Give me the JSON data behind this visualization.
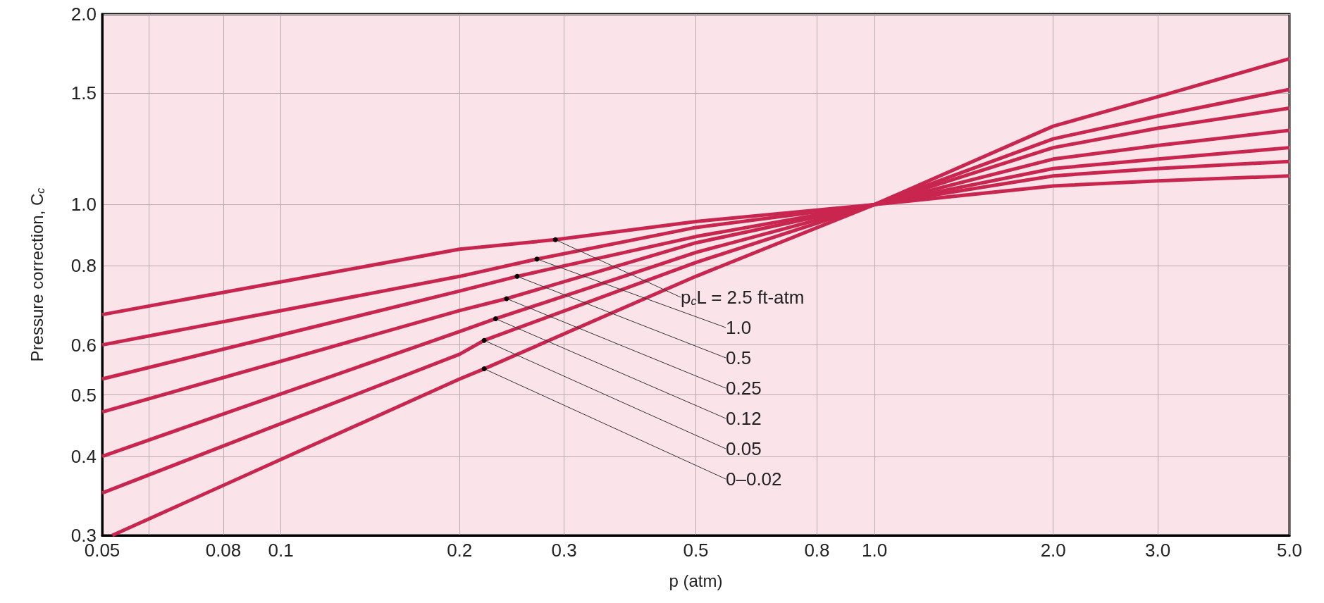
{
  "chart_data": {
    "type": "line",
    "xlabel": "p (atm)",
    "ylabel": "Pressure correction, C$_{c}$",
    "log": "xy",
    "grid": true,
    "xlim": [
      0.05,
      5.0
    ],
    "ylim": [
      0.3,
      2.0
    ],
    "xticks": [
      0.05,
      {
        "value": 0.06,
        "label": null
      },
      0.08,
      0.1,
      0.2,
      0.3,
      0.5,
      0.8,
      {
        "value": 1.0,
        "label": "1.0"
      },
      {
        "value": 2.0,
        "label": "2.0"
      },
      {
        "value": 3.0,
        "label": "3.0"
      },
      {
        "value": 5.0,
        "label": "5.0"
      }
    ],
    "yticks": [
      0.3,
      0.4,
      0.5,
      0.6,
      0.8,
      {
        "value": 1.0,
        "label": "1.0"
      },
      1.5,
      {
        "value": 2.0,
        "label": "2.0"
      }
    ],
    "series": [
      {
        "name": "p$_{c}$L = 2.5 ft-atm",
        "color": "#c8254f",
        "x": [
          0.05,
          0.2,
          0.29,
          0.5,
          1.0,
          2.0,
          3.0,
          5.0
        ],
        "values": [
          0.67,
          0.85,
          0.88,
          0.94,
          1.0,
          1.07,
          1.09,
          1.11
        ]
      },
      {
        "name": "1.0",
        "color": "#c8254f",
        "x": [
          0.05,
          0.2,
          0.27,
          0.5,
          1.0,
          2.0,
          3.0,
          5.0
        ],
        "values": [
          0.6,
          0.77,
          0.82,
          0.92,
          1.0,
          1.11,
          1.14,
          1.17
        ]
      },
      {
        "name": "0.5",
        "color": "#c8254f",
        "x": [
          0.05,
          0.2,
          0.25,
          0.5,
          1.0,
          2.0,
          3.0,
          5.0
        ],
        "values": [
          0.53,
          0.73,
          0.77,
          0.89,
          1.0,
          1.14,
          1.18,
          1.23
        ]
      },
      {
        "name": "0.25",
        "color": "#c8254f",
        "x": [
          0.05,
          0.2,
          0.24,
          0.5,
          1.0,
          2.0,
          3.0,
          5.0
        ],
        "values": [
          0.47,
          0.68,
          0.71,
          0.87,
          1.0,
          1.18,
          1.24,
          1.31
        ]
      },
      {
        "name": "0.12",
        "color": "#c8254f",
        "x": [
          0.05,
          0.2,
          0.23,
          0.5,
          1.0,
          2.0,
          3.0,
          5.0
        ],
        "values": [
          0.4,
          0.63,
          0.66,
          0.84,
          1.0,
          1.23,
          1.32,
          1.42
        ]
      },
      {
        "name": "0.05",
        "color": "#c8254f",
        "x": [
          0.05,
          0.2,
          0.22,
          0.5,
          1.0,
          2.0,
          3.0,
          5.0
        ],
        "values": [
          0.35,
          0.58,
          0.61,
          0.81,
          1.0,
          1.27,
          1.38,
          1.52
        ]
      },
      {
        "name": "0–0.02",
        "color": "#c8254f",
        "x": [
          0.052,
          0.2,
          0.22,
          0.5,
          1.0,
          2.0,
          3.0,
          5.0
        ],
        "values": [
          0.3,
          0.53,
          0.55,
          0.77,
          1.0,
          1.33,
          1.48,
          1.7
        ]
      }
    ]
  }
}
